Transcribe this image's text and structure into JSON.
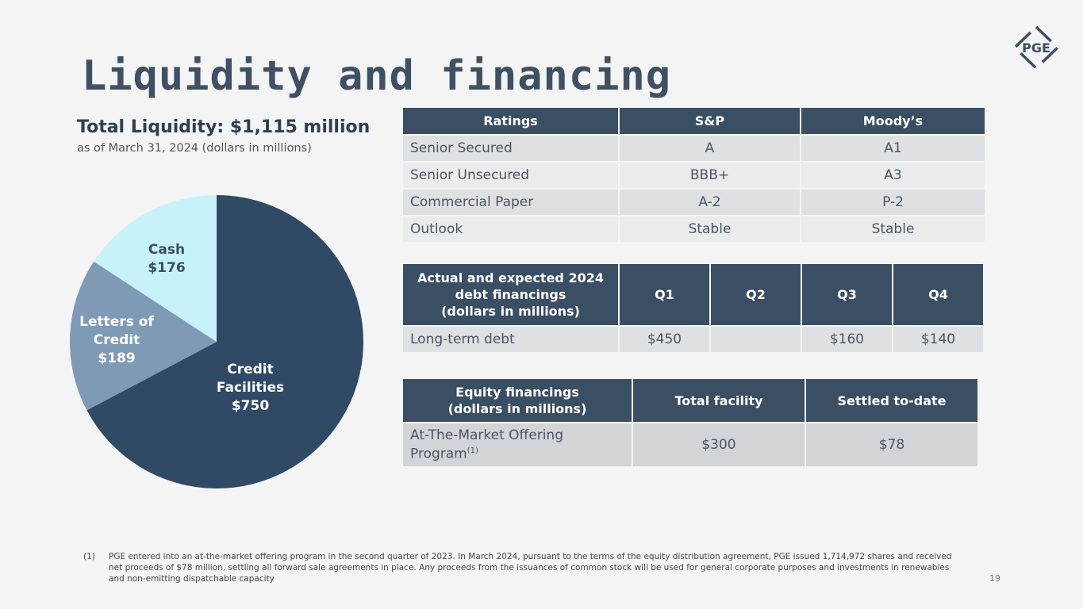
{
  "title": "Liquidity and financing",
  "logo": "PGE",
  "liquidity": {
    "title": "Total Liquidity: $1,115 million",
    "subtitle": "as of March 31, 2024 (dollars in millions)"
  },
  "chart_data": {
    "type": "pie",
    "categories": [
      "Credit Facilities",
      "Letters of Credit",
      "Cash"
    ],
    "values": [
      750,
      189,
      176
    ],
    "labels": [
      "$750",
      "$189",
      "$176"
    ],
    "colors": [
      "#304a66",
      "#7f9ab4",
      "#c8f2fa"
    ]
  },
  "pie_labels": {
    "credit": [
      "Credit",
      "Facilities",
      "$750"
    ],
    "letters": [
      "Letters of",
      "Credit",
      "$189"
    ],
    "cash": [
      "Cash",
      "$176"
    ]
  },
  "ratings": {
    "headers": [
      "Ratings",
      "S&P",
      "Moody’s"
    ],
    "rows": [
      [
        "Senior Secured",
        "A",
        "A1"
      ],
      [
        "Senior Unsecured",
        "BBB+",
        "A3"
      ],
      [
        "Commercial Paper",
        "A-2",
        "P-2"
      ],
      [
        "Outlook",
        "Stable",
        "Stable"
      ]
    ]
  },
  "debt": {
    "headers": [
      "Actual and expected 2024",
      "debt financings",
      "(dollars in millions)",
      "Q1",
      "Q2",
      "Q3",
      "Q4"
    ],
    "row": [
      "Long-term debt",
      "$450",
      "",
      "$160",
      "$140"
    ]
  },
  "equity": {
    "headers": [
      "Equity financings",
      "(dollars in millions)",
      "Total facility",
      "Settled to-date"
    ],
    "row": [
      "At-The-Market Offering",
      "Program",
      "(1)",
      "$300",
      "$78"
    ]
  },
  "footnote": {
    "num": "(1)",
    "text": "PGE entered into an at-the-market offering program in the second quarter of 2023. In March 2024, pursuant to the terms of the equity distribution agreement, PGE issued 1,714,972 shares and received net proceeds of $78 million, settling all forward sale agreements in place. Any proceeds from the issuances of common stock will be used for general corporate purposes and investments in renewables and non-emitting dispatchable capacity"
  },
  "page": "19"
}
